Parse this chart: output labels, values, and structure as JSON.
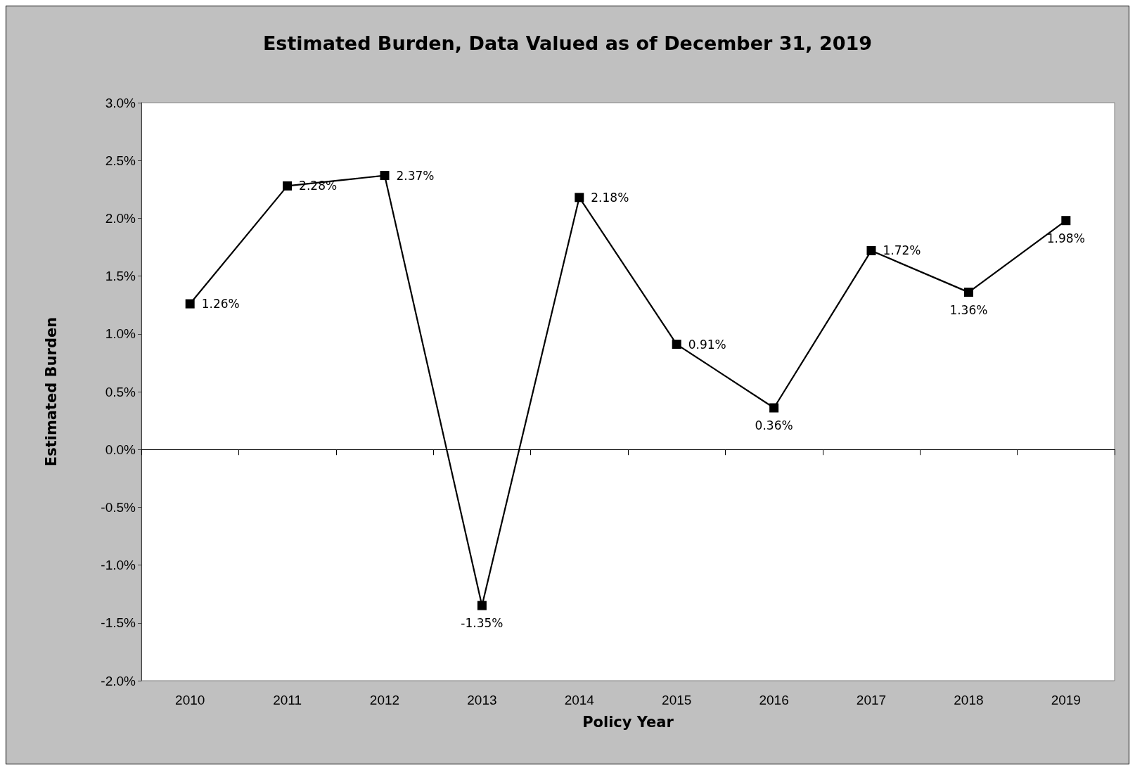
{
  "chart_data": {
    "type": "line",
    "title": "Estimated Burden, Data Valued as of December 31, 2019",
    "xlabel": "Policy Year",
    "ylabel": "Estimated Burden",
    "categories": [
      "2010",
      "2011",
      "2012",
      "2013",
      "2014",
      "2015",
      "2016",
      "2017",
      "2018",
      "2019"
    ],
    "series": [
      {
        "color": "#000000",
        "values": [
          1.26,
          2.28,
          2.37,
          -1.35,
          2.18,
          0.91,
          0.36,
          1.72,
          1.36,
          1.98
        ],
        "value_labels": [
          "1.26%",
          "2.28%",
          "2.37%",
          "-1.35%",
          "2.18%",
          "0.91%",
          "0.36%",
          "1.72%",
          "1.36%",
          "1.98%"
        ]
      }
    ],
    "ylim": [
      -2,
      3
    ],
    "yticks": [
      {
        "value": -2,
        "label": "-2.0%"
      },
      {
        "value": -1.5,
        "label": "-1.5%"
      },
      {
        "value": -1,
        "label": "-1.0%"
      },
      {
        "value": -0.5,
        "label": "-0.5%"
      },
      {
        "value": 0,
        "label": "0.0%"
      },
      {
        "value": 0.5,
        "label": "0.5%"
      },
      {
        "value": 1,
        "label": "1.0%"
      },
      {
        "value": 1.5,
        "label": "1.5%"
      },
      {
        "value": 2,
        "label": "2.0%"
      },
      {
        "value": 2.5,
        "label": "2.5%"
      },
      {
        "value": 3,
        "label": "3.0%"
      }
    ],
    "marker": "square",
    "line_style": "solid"
  }
}
